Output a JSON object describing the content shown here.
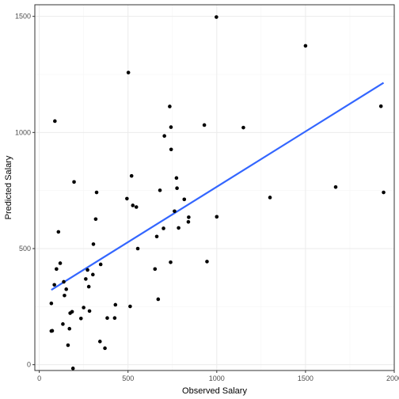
{
  "chart_data": {
    "type": "scatter",
    "xlabel": "Observed Salary",
    "ylabel": "Predicted Salary",
    "xlim": [
      -25,
      2000
    ],
    "ylim": [
      -25,
      1550
    ],
    "x_ticks": [
      0,
      500,
      1000,
      1500,
      2000
    ],
    "x_tick_labels": [
      "0",
      "500",
      "1000",
      "1500",
      "2000"
    ],
    "y_ticks": [
      0,
      500,
      1000,
      1500
    ],
    "y_tick_labels": [
      "0",
      "500",
      "1000",
      "1500"
    ],
    "grid": true,
    "points": [
      {
        "x": 68,
        "y": 264
      },
      {
        "x": 68,
        "y": 145
      },
      {
        "x": 73,
        "y": 146
      },
      {
        "x": 85,
        "y": 344
      },
      {
        "x": 88,
        "y": 1049
      },
      {
        "x": 97,
        "y": 412
      },
      {
        "x": 108,
        "y": 572
      },
      {
        "x": 118,
        "y": 437
      },
      {
        "x": 133,
        "y": 175
      },
      {
        "x": 138,
        "y": 357
      },
      {
        "x": 142,
        "y": 298
      },
      {
        "x": 152,
        "y": 325
      },
      {
        "x": 162,
        "y": 84
      },
      {
        "x": 170,
        "y": 155
      },
      {
        "x": 174,
        "y": 222
      },
      {
        "x": 185,
        "y": 228
      },
      {
        "x": 190,
        "y": -16
      },
      {
        "x": 196,
        "y": 787
      },
      {
        "x": 235,
        "y": 199
      },
      {
        "x": 250,
        "y": 246
      },
      {
        "x": 262,
        "y": 369
      },
      {
        "x": 272,
        "y": 408
      },
      {
        "x": 279,
        "y": 336
      },
      {
        "x": 283,
        "y": 231
      },
      {
        "x": 302,
        "y": 388
      },
      {
        "x": 305,
        "y": 519
      },
      {
        "x": 318,
        "y": 627
      },
      {
        "x": 323,
        "y": 742
      },
      {
        "x": 342,
        "y": 100
      },
      {
        "x": 346,
        "y": 432
      },
      {
        "x": 370,
        "y": 71
      },
      {
        "x": 383,
        "y": 201
      },
      {
        "x": 425,
        "y": 201
      },
      {
        "x": 429,
        "y": 258
      },
      {
        "x": 494,
        "y": 715
      },
      {
        "x": 502,
        "y": 1258
      },
      {
        "x": 512,
        "y": 251
      },
      {
        "x": 520,
        "y": 813
      },
      {
        "x": 527,
        "y": 686
      },
      {
        "x": 547,
        "y": 679
      },
      {
        "x": 555,
        "y": 500
      },
      {
        "x": 652,
        "y": 412
      },
      {
        "x": 662,
        "y": 552
      },
      {
        "x": 670,
        "y": 282
      },
      {
        "x": 680,
        "y": 751
      },
      {
        "x": 700,
        "y": 587
      },
      {
        "x": 705,
        "y": 985
      },
      {
        "x": 735,
        "y": 1112
      },
      {
        "x": 740,
        "y": 441
      },
      {
        "x": 742,
        "y": 1023
      },
      {
        "x": 743,
        "y": 927
      },
      {
        "x": 762,
        "y": 661
      },
      {
        "x": 773,
        "y": 804
      },
      {
        "x": 776,
        "y": 760
      },
      {
        "x": 785,
        "y": 589
      },
      {
        "x": 817,
        "y": 712
      },
      {
        "x": 840,
        "y": 615
      },
      {
        "x": 842,
        "y": 635
      },
      {
        "x": 930,
        "y": 1032
      },
      {
        "x": 945,
        "y": 444
      },
      {
        "x": 998,
        "y": 1497
      },
      {
        "x": 1000,
        "y": 637
      },
      {
        "x": 1150,
        "y": 1021
      },
      {
        "x": 1300,
        "y": 720
      },
      {
        "x": 1500,
        "y": 1373
      },
      {
        "x": 1670,
        "y": 765
      },
      {
        "x": 1925,
        "y": 1113
      },
      {
        "x": 1940,
        "y": 742
      }
    ],
    "fit_line": {
      "x": [
        68,
        1940
      ],
      "y": [
        322,
        1214
      ]
    },
    "point_color": "#000000",
    "line_color": "#3366FF",
    "panel_border_color": "#333333",
    "grid_major_color": "#EBEBEB",
    "grid_minor_color": "#F5F5F5"
  }
}
